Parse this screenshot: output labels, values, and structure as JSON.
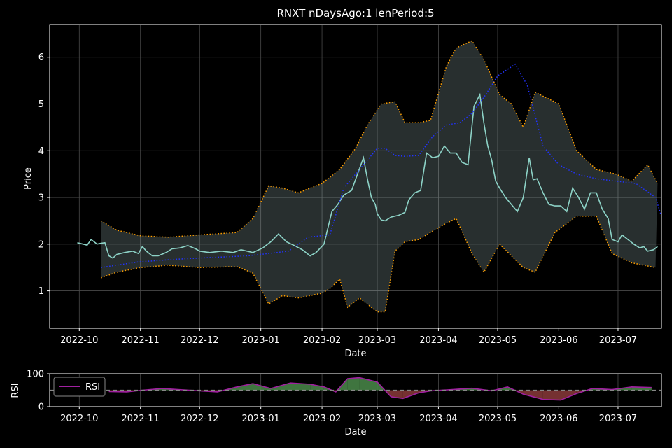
{
  "chart_data": [
    {
      "type": "line",
      "title": "RNXT nDaysAgo:1 lenPeriod:5",
      "xlabel": "Date",
      "ylabel": "Price",
      "x_ticks": [
        "2022-10",
        "2022-11",
        "2022-12",
        "2023-01",
        "2023-02",
        "2023-03",
        "2023-04",
        "2023-05",
        "2023-06",
        "2023-07"
      ],
      "y_ticks": [
        1,
        2,
        3,
        4,
        5,
        6
      ],
      "xlim": [
        "2022-09-16",
        "2023-07-23"
      ],
      "ylim": [
        0.2,
        6.7
      ],
      "grid": true,
      "series": [
        {
          "role": "price",
          "color": "#8dd3c7",
          "points": [
            [
              "2022-09-30",
              2.03
            ],
            [
              "2022-10-03",
              2.0
            ],
            [
              "2022-10-05",
              1.98
            ],
            [
              "2022-10-07",
              2.1
            ],
            [
              "2022-10-10",
              2.0
            ],
            [
              "2022-10-12",
              2.02
            ],
            [
              "2022-10-14",
              2.03
            ],
            [
              "2022-10-16",
              1.75
            ],
            [
              "2022-10-18",
              1.7
            ],
            [
              "2022-10-20",
              1.78
            ],
            [
              "2022-10-24",
              1.82
            ],
            [
              "2022-10-28",
              1.85
            ],
            [
              "2022-10-31",
              1.8
            ],
            [
              "2022-11-02",
              1.95
            ],
            [
              "2022-11-04",
              1.85
            ],
            [
              "2022-11-07",
              1.75
            ],
            [
              "2022-11-10",
              1.75
            ],
            [
              "2022-11-14",
              1.82
            ],
            [
              "2022-11-17",
              1.9
            ],
            [
              "2022-11-21",
              1.92
            ],
            [
              "2022-11-25",
              1.97
            ],
            [
              "2022-11-29",
              1.9
            ],
            [
              "2022-12-01",
              1.85
            ],
            [
              "2022-12-06",
              1.82
            ],
            [
              "2022-12-12",
              1.85
            ],
            [
              "2022-12-18",
              1.82
            ],
            [
              "2022-12-22",
              1.88
            ],
            [
              "2022-12-28",
              1.82
            ],
            [
              "2023-01-02",
              1.92
            ],
            [
              "2023-01-06",
              2.05
            ],
            [
              "2023-01-10",
              2.22
            ],
            [
              "2023-01-14",
              2.05
            ],
            [
              "2023-01-18",
              1.97
            ],
            [
              "2023-01-22",
              1.88
            ],
            [
              "2023-01-26",
              1.75
            ],
            [
              "2023-01-29",
              1.82
            ],
            [
              "2023-02-02",
              2.0
            ],
            [
              "2023-02-06",
              2.7
            ],
            [
              "2023-02-09",
              2.85
            ],
            [
              "2023-02-12",
              3.05
            ],
            [
              "2023-02-16",
              3.15
            ],
            [
              "2023-02-19",
              3.5
            ],
            [
              "2023-02-22",
              3.85
            ],
            [
              "2023-02-24",
              3.4
            ],
            [
              "2023-02-26",
              3.0
            ],
            [
              "2023-02-28",
              2.85
            ],
            [
              "2023-03-01",
              2.65
            ],
            [
              "2023-03-03",
              2.52
            ],
            [
              "2023-03-05",
              2.5
            ],
            [
              "2023-03-08",
              2.58
            ],
            [
              "2023-03-12",
              2.62
            ],
            [
              "2023-03-15",
              2.68
            ],
            [
              "2023-03-17",
              2.95
            ],
            [
              "2023-03-20",
              3.1
            ],
            [
              "2023-03-23",
              3.15
            ],
            [
              "2023-03-26",
              3.95
            ],
            [
              "2023-03-29",
              3.85
            ],
            [
              "2023-04-01",
              3.88
            ],
            [
              "2023-04-04",
              4.1
            ],
            [
              "2023-04-07",
              3.95
            ],
            [
              "2023-04-10",
              3.95
            ],
            [
              "2023-04-13",
              3.75
            ],
            [
              "2023-04-16",
              3.7
            ],
            [
              "2023-04-19",
              4.95
            ],
            [
              "2023-04-22",
              5.2
            ],
            [
              "2023-04-24",
              4.6
            ],
            [
              "2023-04-26",
              4.1
            ],
            [
              "2023-04-28",
              3.8
            ],
            [
              "2023-04-30",
              3.35
            ],
            [
              "2023-05-02",
              3.2
            ],
            [
              "2023-05-05",
              3.0
            ],
            [
              "2023-05-08",
              2.85
            ],
            [
              "2023-05-11",
              2.7
            ],
            [
              "2023-05-14",
              3.0
            ],
            [
              "2023-05-17",
              3.85
            ],
            [
              "2023-05-19",
              3.38
            ],
            [
              "2023-05-21",
              3.4
            ],
            [
              "2023-05-24",
              3.1
            ],
            [
              "2023-05-27",
              2.85
            ],
            [
              "2023-05-30",
              2.82
            ],
            [
              "2023-06-02",
              2.82
            ],
            [
              "2023-06-05",
              2.7
            ],
            [
              "2023-06-08",
              3.2
            ],
            [
              "2023-06-11",
              3.0
            ],
            [
              "2023-06-14",
              2.75
            ],
            [
              "2023-06-17",
              3.1
            ],
            [
              "2023-06-20",
              3.1
            ],
            [
              "2023-06-23",
              2.75
            ],
            [
              "2023-06-26",
              2.55
            ],
            [
              "2023-06-28",
              2.1
            ],
            [
              "2023-07-01",
              2.05
            ],
            [
              "2023-07-03",
              2.2
            ],
            [
              "2023-07-06",
              2.1
            ],
            [
              "2023-07-09",
              2.0
            ],
            [
              "2023-07-12",
              1.92
            ],
            [
              "2023-07-14",
              1.95
            ],
            [
              "2023-07-16",
              1.85
            ],
            [
              "2023-07-19",
              1.88
            ],
            [
              "2023-07-21",
              1.95
            ]
          ]
        },
        {
          "role": "moving average",
          "color": "#2233ff",
          "style": "dotted",
          "points": [
            [
              "2022-10-12",
              1.5
            ],
            [
              "2022-10-31",
              1.62
            ],
            [
              "2022-11-20",
              1.68
            ],
            [
              "2022-12-10",
              1.72
            ],
            [
              "2022-12-25",
              1.75
            ],
            [
              "2023-01-05",
              1.8
            ],
            [
              "2023-01-15",
              1.85
            ],
            [
              "2023-01-25",
              2.15
            ],
            [
              "2023-02-05",
              2.2
            ],
            [
              "2023-02-12",
              3.2
            ],
            [
              "2023-02-22",
              3.7
            ],
            [
              "2023-03-01",
              4.05
            ],
            [
              "2023-03-05",
              4.05
            ],
            [
              "2023-03-10",
              3.9
            ],
            [
              "2023-03-15",
              3.88
            ],
            [
              "2023-03-22",
              3.9
            ],
            [
              "2023-03-29",
              4.3
            ],
            [
              "2023-04-05",
              4.55
            ],
            [
              "2023-04-12",
              4.6
            ],
            [
              "2023-04-18",
              4.8
            ],
            [
              "2023-04-25",
              5.2
            ],
            [
              "2023-05-01",
              5.6
            ],
            [
              "2023-05-10",
              5.85
            ],
            [
              "2023-05-16",
              5.4
            ],
            [
              "2023-05-24",
              4.1
            ],
            [
              "2023-06-01",
              3.7
            ],
            [
              "2023-06-10",
              3.5
            ],
            [
              "2023-06-20",
              3.4
            ],
            [
              "2023-06-30",
              3.35
            ],
            [
              "2023-07-10",
              3.3
            ],
            [
              "2023-07-20",
              3.0
            ],
            [
              "2023-07-23",
              2.6
            ]
          ]
        },
        {
          "role": "upper band",
          "color": "#ff9f00",
          "style": "dotted",
          "points": [
            [
              "2022-10-12",
              2.5
            ],
            [
              "2022-10-20",
              2.3
            ],
            [
              "2022-11-01",
              2.18
            ],
            [
              "2022-11-15",
              2.15
            ],
            [
              "2022-12-01",
              2.2
            ],
            [
              "2022-12-20",
              2.25
            ],
            [
              "2022-12-28",
              2.55
            ],
            [
              "2023-01-05",
              3.25
            ],
            [
              "2023-01-12",
              3.2
            ],
            [
              "2023-01-20",
              3.1
            ],
            [
              "2023-02-01",
              3.3
            ],
            [
              "2023-02-10",
              3.6
            ],
            [
              "2023-02-18",
              4.05
            ],
            [
              "2023-02-24",
              4.55
            ],
            [
              "2023-03-03",
              5.0
            ],
            [
              "2023-03-10",
              5.05
            ],
            [
              "2023-03-15",
              4.6
            ],
            [
              "2023-03-22",
              4.6
            ],
            [
              "2023-03-28",
              4.65
            ],
            [
              "2023-04-05",
              5.8
            ],
            [
              "2023-04-10",
              6.2
            ],
            [
              "2023-04-18",
              6.35
            ],
            [
              "2023-04-24",
              5.95
            ],
            [
              "2023-05-02",
              5.2
            ],
            [
              "2023-05-08",
              5.0
            ],
            [
              "2023-05-14",
              4.5
            ],
            [
              "2023-05-20",
              5.25
            ],
            [
              "2023-06-01",
              5.0
            ],
            [
              "2023-06-10",
              4.0
            ],
            [
              "2023-06-20",
              3.6
            ],
            [
              "2023-06-30",
              3.5
            ],
            [
              "2023-07-08",
              3.35
            ],
            [
              "2023-07-16",
              3.7
            ],
            [
              "2023-07-21",
              3.3
            ]
          ]
        },
        {
          "role": "lower band",
          "color": "#ff9f00",
          "style": "dotted",
          "points": [
            [
              "2022-10-12",
              1.28
            ],
            [
              "2022-10-20",
              1.4
            ],
            [
              "2022-11-01",
              1.5
            ],
            [
              "2022-11-15",
              1.55
            ],
            [
              "2022-12-01",
              1.5
            ],
            [
              "2022-12-20",
              1.52
            ],
            [
              "2022-12-28",
              1.38
            ],
            [
              "2023-01-05",
              0.72
            ],
            [
              "2023-01-12",
              0.9
            ],
            [
              "2023-01-20",
              0.85
            ],
            [
              "2023-02-01",
              0.95
            ],
            [
              "2023-02-05",
              1.05
            ],
            [
              "2023-02-10",
              1.25
            ],
            [
              "2023-02-14",
              0.65
            ],
            [
              "2023-02-20",
              0.85
            ],
            [
              "2023-03-01",
              0.55
            ],
            [
              "2023-03-05",
              0.55
            ],
            [
              "2023-03-10",
              1.85
            ],
            [
              "2023-03-15",
              2.05
            ],
            [
              "2023-03-22",
              2.1
            ],
            [
              "2023-03-28",
              2.25
            ],
            [
              "2023-04-05",
              2.45
            ],
            [
              "2023-04-10",
              2.55
            ],
            [
              "2023-04-18",
              1.8
            ],
            [
              "2023-04-24",
              1.4
            ],
            [
              "2023-05-02",
              2.0
            ],
            [
              "2023-05-08",
              1.75
            ],
            [
              "2023-05-14",
              1.5
            ],
            [
              "2023-05-20",
              1.4
            ],
            [
              "2023-05-30",
              2.25
            ],
            [
              "2023-06-10",
              2.6
            ],
            [
              "2023-06-20",
              2.6
            ],
            [
              "2023-06-28",
              1.8
            ],
            [
              "2023-07-08",
              1.6
            ],
            [
              "2023-07-20",
              1.5
            ]
          ]
        }
      ]
    },
    {
      "type": "area",
      "xlabel": "Date",
      "ylabel": "RSI",
      "y_ticks": [
        0,
        100
      ],
      "ylim": [
        0,
        100
      ],
      "reference_line": 50,
      "legend": [
        "RSI"
      ],
      "legend_position": "top-left",
      "series": [
        {
          "name": "RSI",
          "color": "#a020a0",
          "points": [
            [
              "2022-10-16",
              46
            ],
            [
              "2022-10-25",
              45
            ],
            [
              "2022-11-02",
              50
            ],
            [
              "2022-11-12",
              55
            ],
            [
              "2022-11-20",
              52
            ],
            [
              "2022-12-01",
              48
            ],
            [
              "2022-12-10",
              45
            ],
            [
              "2022-12-20",
              60
            ],
            [
              "2022-12-28",
              70
            ],
            [
              "2023-01-06",
              55
            ],
            [
              "2023-01-16",
              72
            ],
            [
              "2023-01-26",
              68
            ],
            [
              "2023-02-02",
              60
            ],
            [
              "2023-02-08",
              45
            ],
            [
              "2023-02-14",
              85
            ],
            [
              "2023-02-20",
              88
            ],
            [
              "2023-03-01",
              75
            ],
            [
              "2023-03-08",
              30
            ],
            [
              "2023-03-14",
              25
            ],
            [
              "2023-03-22",
              42
            ],
            [
              "2023-03-28",
              48
            ],
            [
              "2023-04-08",
              52
            ],
            [
              "2023-04-18",
              56
            ],
            [
              "2023-04-28",
              48
            ],
            [
              "2023-05-06",
              60
            ],
            [
              "2023-05-14",
              38
            ],
            [
              "2023-05-24",
              22
            ],
            [
              "2023-06-02",
              20
            ],
            [
              "2023-06-10",
              40
            ],
            [
              "2023-06-18",
              55
            ],
            [
              "2023-06-28",
              52
            ],
            [
              "2023-07-08",
              60
            ],
            [
              "2023-07-18",
              58
            ]
          ]
        }
      ]
    }
  ]
}
